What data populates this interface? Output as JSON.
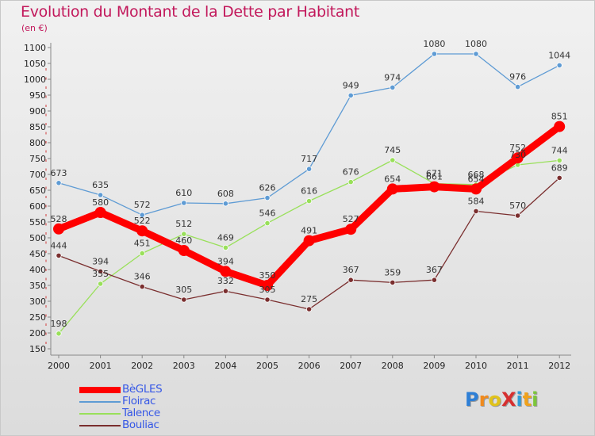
{
  "chart_data": {
    "type": "line",
    "title": "Evolution du Montant de la Dette par Habitant",
    "subtitle": "(en €)",
    "x": [
      "2000",
      "2001",
      "2002",
      "2003",
      "2004",
      "2005",
      "2006",
      "2007",
      "2008",
      "2009",
      "2010",
      "2011",
      "2012"
    ],
    "ylim": [
      150,
      1100
    ],
    "yticks": [
      150,
      200,
      250,
      300,
      350,
      400,
      450,
      500,
      550,
      600,
      650,
      700,
      750,
      800,
      850,
      900,
      950,
      1000,
      1050,
      1100
    ],
    "grid": false,
    "legend_position": "bottom-left",
    "series": [
      {
        "name": "BèGLES",
        "color": "#ff0000",
        "line_width": 9,
        "marker_r": 7,
        "values": [
          528,
          580,
          522,
          460,
          394,
          350,
          491,
          527,
          654,
          661,
          654,
          752,
          851
        ]
      },
      {
        "name": "Floirac",
        "color": "#5e9bd4",
        "line_width": 1.3,
        "marker_r": 3.2,
        "values": [
          673,
          635,
          572,
          610,
          608,
          626,
          717,
          949,
          974,
          1080,
          1080,
          976,
          1044
        ]
      },
      {
        "name": "Talence",
        "color": "#99e05a",
        "line_width": 1.3,
        "marker_r": 3.2,
        "values": [
          198,
          355,
          451,
          512,
          469,
          546,
          616,
          676,
          745,
          671,
          668,
          730,
          744
        ]
      },
      {
        "name": "Bouliac",
        "color": "#7a2e2e",
        "line_width": 1.3,
        "marker_r": 3.2,
        "values": [
          444,
          394,
          346,
          305,
          332,
          305,
          275,
          367,
          359,
          367,
          584,
          570,
          689
        ]
      }
    ]
  },
  "logo": {
    "text": "ProXiti"
  }
}
